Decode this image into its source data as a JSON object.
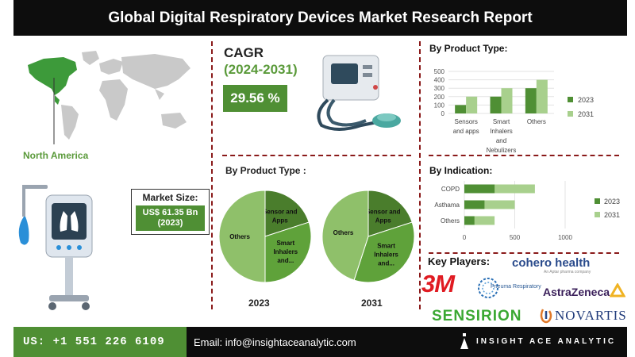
{
  "header": {
    "title": "Global Digital Respiratory Devices Market  Research Report"
  },
  "region": {
    "label": "North America"
  },
  "market_size": {
    "label": "Market Size:",
    "value": "US$ 61.35 Bn",
    "year": "(2023)"
  },
  "cagr": {
    "title": "CAGR",
    "period": "(2024-2031)",
    "value": "29.56 %"
  },
  "pies": {
    "title": "By Product Type :",
    "year_a": "2023",
    "year_b": "2031",
    "labels": {
      "sensors": "Sensor and Apps",
      "smart": "Smart Inhalers and...",
      "others": "Others"
    }
  },
  "key_players": {
    "title": "Key Players:",
    "logos": [
      "3M",
      "Pneuma Respiratory",
      "cohero health",
      "AstraZeneca",
      "SENSIRION",
      "NOVARTIS"
    ],
    "cohero_tagline": "An Aptar pharma company"
  },
  "footer": {
    "phone": "US: +1 551 226 6109",
    "email": "Email: info@insightaceanalytic.com",
    "brand": "INSIGHT ACE ANALYTIC"
  },
  "colors": {
    "dark_green": "#4f8f34",
    "light_green": "#a8d08d",
    "pie_dark": "#4a7d2c",
    "pie_mid": "#5fa23a",
    "pie_light": "#8fc06a"
  },
  "chart_data": [
    {
      "type": "bar",
      "title": "By Product Type:",
      "categories": [
        "Sensors and apps",
        "Smart Inhalers and Nebulizers",
        "Others"
      ],
      "series": [
        {
          "name": "2023",
          "values": [
            100,
            200,
            300
          ]
        },
        {
          "name": "2031",
          "values": [
            200,
            300,
            400
          ]
        }
      ],
      "ylim": [
        0,
        500
      ],
      "yticks": [
        "0",
        "100",
        "200",
        "300",
        "400",
        "500"
      ],
      "legend": "right"
    },
    {
      "type": "bar",
      "orientation": "horizontal",
      "title": "By Indication:",
      "categories": [
        "COPD",
        "Asthama",
        "Others"
      ],
      "series": [
        {
          "name": "2023",
          "values": [
            300,
            200,
            100
          ]
        },
        {
          "name": "2031",
          "values": [
            700,
            500,
            300
          ]
        }
      ],
      "xlim": [
        0,
        1000
      ],
      "xticks": [
        "0",
        "500",
        "1000"
      ],
      "legend": "right"
    },
    {
      "type": "pie",
      "title": "2023",
      "labels": [
        "Sensor and Apps",
        "Smart Inhalers and...",
        "Others"
      ],
      "values": [
        20,
        30,
        50
      ]
    },
    {
      "type": "pie",
      "title": "2031",
      "labels": [
        "Sensor and Apps",
        "Smart Inhalers and...",
        "Others"
      ],
      "values": [
        20,
        35,
        45
      ]
    }
  ]
}
